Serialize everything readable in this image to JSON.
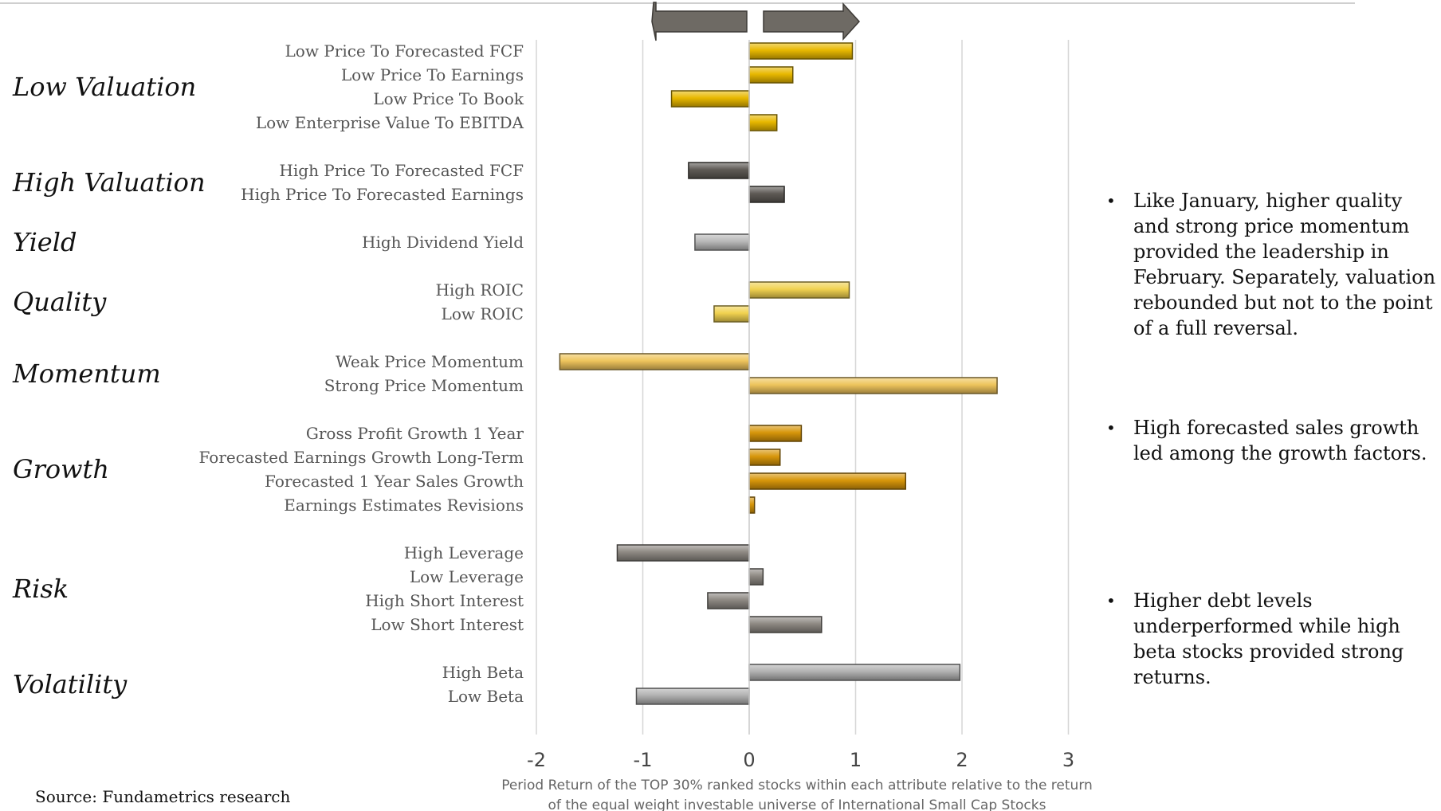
{
  "chart_data": {
    "type": "bar",
    "orientation": "horizontal",
    "xlim": [
      -2,
      3
    ],
    "xticks": [
      -2,
      -1,
      0,
      1,
      2,
      3
    ],
    "grid": true,
    "xlabel_lines": [
      "Period Return of the TOP 30% ranked stocks within each attribute relative to the return",
      "of the equal weight investable universe of International Small Cap Stocks"
    ],
    "groups": [
      {
        "name": "Low Valuation",
        "color": "#e8b800",
        "items": [
          {
            "label": "Low Price To Forecasted FCF",
            "value": 0.97
          },
          {
            "label": "Low Price To Earnings",
            "value": 0.41
          },
          {
            "label": "Low Price To Book",
            "value": -0.73
          },
          {
            "label": "Low Enterprise Value To EBITDA",
            "value": 0.26
          }
        ]
      },
      {
        "name": "High Valuation",
        "color": "#5e5a55",
        "items": [
          {
            "label": "High Price To Forecasted FCF",
            "value": -0.57
          },
          {
            "label": "High Price To Forecasted Earnings",
            "value": 0.33
          }
        ]
      },
      {
        "name": "Yield",
        "color": "#b8b8b8",
        "items": [
          {
            "label": "High Dividend Yield",
            "value": -0.51
          }
        ]
      },
      {
        "name": "Quality",
        "color": "#f1d250",
        "items": [
          {
            "label": "High ROIC",
            "value": 0.94
          },
          {
            "label": "Low ROIC",
            "value": -0.33
          }
        ]
      },
      {
        "name": "Momentum",
        "color": "#eec45c",
        "items": [
          {
            "label": "Weak Price Momentum",
            "value": -1.78
          },
          {
            "label": "Strong Price Momentum",
            "value": 2.33
          }
        ]
      },
      {
        "name": "Growth",
        "color": "#d7960a",
        "items": [
          {
            "label": "Gross Profit Growth 1 Year",
            "value": 0.49
          },
          {
            "label": "Forecasted Earnings Growth Long-Term",
            "value": 0.29
          },
          {
            "label": "Forecasted 1 Year Sales Growth",
            "value": 1.47
          },
          {
            "label": "Earnings Estimates Revisions",
            "value": 0.05
          }
        ]
      },
      {
        "name": "Risk",
        "color": "#8e8983",
        "items": [
          {
            "label": "High Leverage",
            "value": -1.24
          },
          {
            "label": "Low Leverage",
            "value": 0.13
          },
          {
            "label": "High Short Interest",
            "value": -0.39
          },
          {
            "label": "Low Short Interest",
            "value": 0.68
          }
        ]
      },
      {
        "name": "Volatility",
        "color": "#b1b1b1",
        "items": [
          {
            "label": "High Beta",
            "value": 1.98
          },
          {
            "label": "Low Beta",
            "value": -1.06
          }
        ]
      }
    ]
  },
  "notes": [
    "Like January, higher quality and strong price momentum provided the leadership in February. Separately, valuation rebounded but not to the point of a full reversal.",
    "High forecasted sales growth led among the growth factors.",
    "Higher debt levels underperformed while high beta stocks provided strong returns."
  ],
  "bullet_glyph": "•",
  "source": "Source:  Fundametrics research"
}
